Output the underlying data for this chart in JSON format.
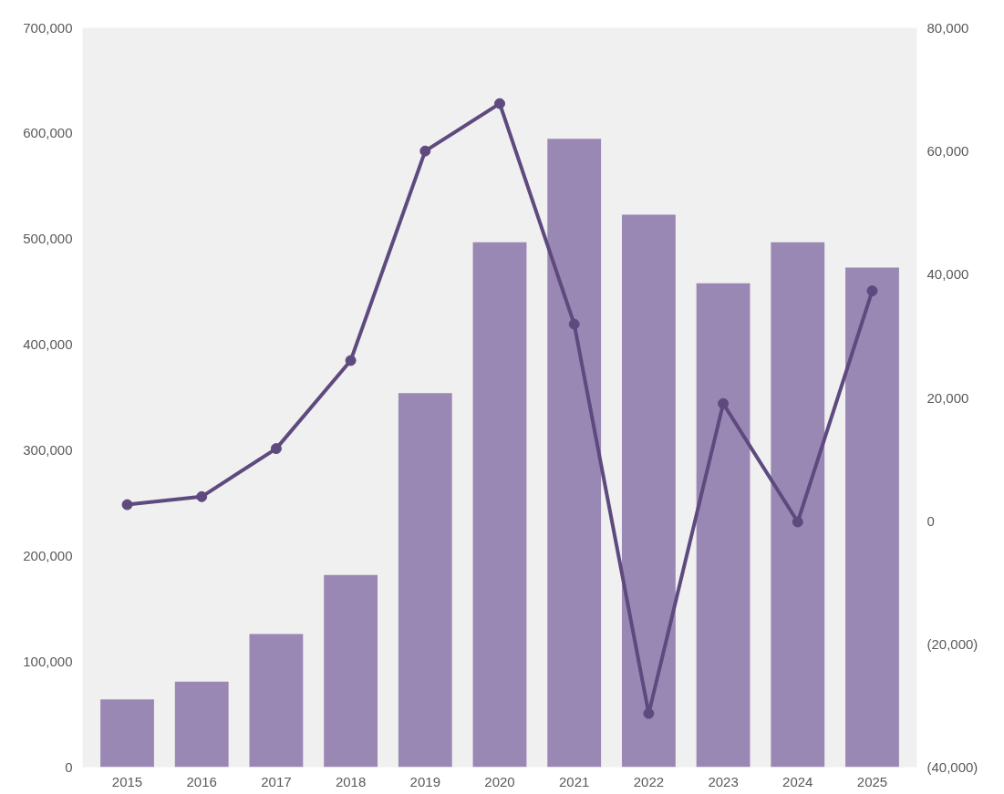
{
  "chart_data": {
    "type": "bar",
    "categories": [
      "2015",
      "2016",
      "2017",
      "2018",
      "2019",
      "2020",
      "2021",
      "2022",
      "2023",
      "2024",
      "2025"
    ],
    "series": [
      {
        "color": "#9a88b4",
        "values": [
          64000,
          81000,
          126000,
          182000,
          354000,
          497000,
          595000,
          523000,
          458000,
          497000,
          473000
        ]
      },
      {
        "type": "line",
        "axis": "y2",
        "color": "#5e4a7e",
        "marker": "circle",
        "values": [
          2600,
          3900,
          11700,
          26000,
          60000,
          67700,
          31900,
          -31300,
          19000,
          -200,
          37300
        ]
      }
    ],
    "ylim": [
      0,
      700000
    ],
    "yticks": [
      {
        "value": 0,
        "label": "0"
      },
      {
        "value": 100000,
        "label": "100,000"
      },
      {
        "value": 200000,
        "label": "200,000"
      },
      {
        "value": 300000,
        "label": "300,000"
      },
      {
        "value": 400000,
        "label": "400,000"
      },
      {
        "value": 500000,
        "label": "500,000"
      },
      {
        "value": 600000,
        "label": "600,000"
      },
      {
        "value": 700000,
        "label": "700,000"
      }
    ],
    "y2lim": [
      -40000,
      80000
    ],
    "y2ticks": [
      {
        "value": -40000,
        "label": "(40,000)"
      },
      {
        "value": -20000,
        "label": "(20,000)"
      },
      {
        "value": 0,
        "label": "0"
      },
      {
        "value": 20000,
        "label": "20,000"
      },
      {
        "value": 40000,
        "label": "40,000"
      },
      {
        "value": 60000,
        "label": "60,000"
      },
      {
        "value": 80000,
        "label": "80,000"
      }
    ],
    "grid": false
  }
}
